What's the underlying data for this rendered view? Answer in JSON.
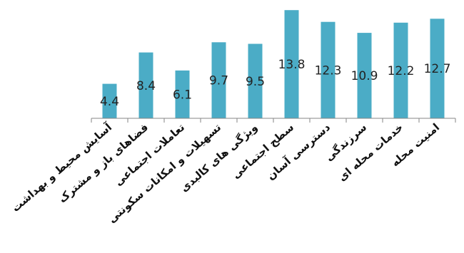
{
  "chart_data": {
    "type": "bar",
    "categories": [
      "آسایش محیط و بهداشت",
      "فضاهای باز و مشترک",
      "تعاملات اجتماعی",
      "تسهیلات و امکانات سکونتی",
      "ویژگی های کالبدی",
      "سطح اجتماعی",
      "دسترسی آسان",
      "سرزندگی",
      "خدمات محله ای",
      "امنیت محله"
    ],
    "values": [
      4.4,
      8.4,
      6.1,
      9.7,
      9.5,
      13.8,
      12.3,
      10.9,
      12.2,
      12.7
    ],
    "ylim": [
      0,
      14
    ],
    "grid": false,
    "legend": "none",
    "colors": {
      "bar": "#4bacc6"
    }
  }
}
